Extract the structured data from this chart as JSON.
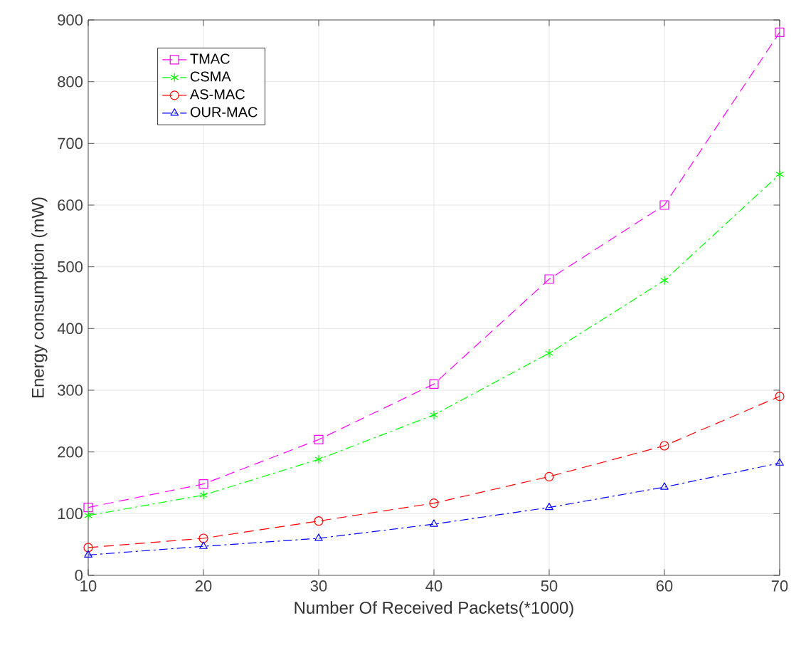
{
  "chart_data": {
    "type": "line",
    "xlabel": "Number Of Received Packets(*1000)",
    "ylabel": "Energy consumption (mW)",
    "x": [
      10,
      20,
      30,
      40,
      50,
      60,
      70
    ],
    "series": [
      {
        "name": "TMAC",
        "color": "#ff00ff",
        "marker": "square",
        "line_style": "dashed",
        "values": [
          110,
          148,
          220,
          310,
          480,
          600,
          880
        ]
      },
      {
        "name": "CSMA",
        "color": "#00ff00",
        "marker": "cross",
        "line_style": "dashdot",
        "values": [
          97,
          130,
          188,
          260,
          360,
          478,
          650
        ]
      },
      {
        "name": "AS-MAC",
        "color": "#ff0000",
        "marker": "circle",
        "line_style": "dashed",
        "values": [
          45,
          60,
          88,
          117,
          160,
          210,
          290
        ]
      },
      {
        "name": "OUR-MAC",
        "color": "#0000ff",
        "marker": "triangle",
        "line_style": "dashdot",
        "values": [
          33,
          47,
          60,
          83,
          110,
          143,
          182
        ]
      }
    ],
    "xlim": [
      10,
      70
    ],
    "ylim": [
      0,
      900
    ],
    "xticks": [
      10,
      20,
      30,
      40,
      50,
      60,
      70
    ],
    "yticks": [
      0,
      100,
      200,
      300,
      400,
      500,
      600,
      700,
      800,
      900
    ],
    "grid": true,
    "legend": "top left"
  }
}
